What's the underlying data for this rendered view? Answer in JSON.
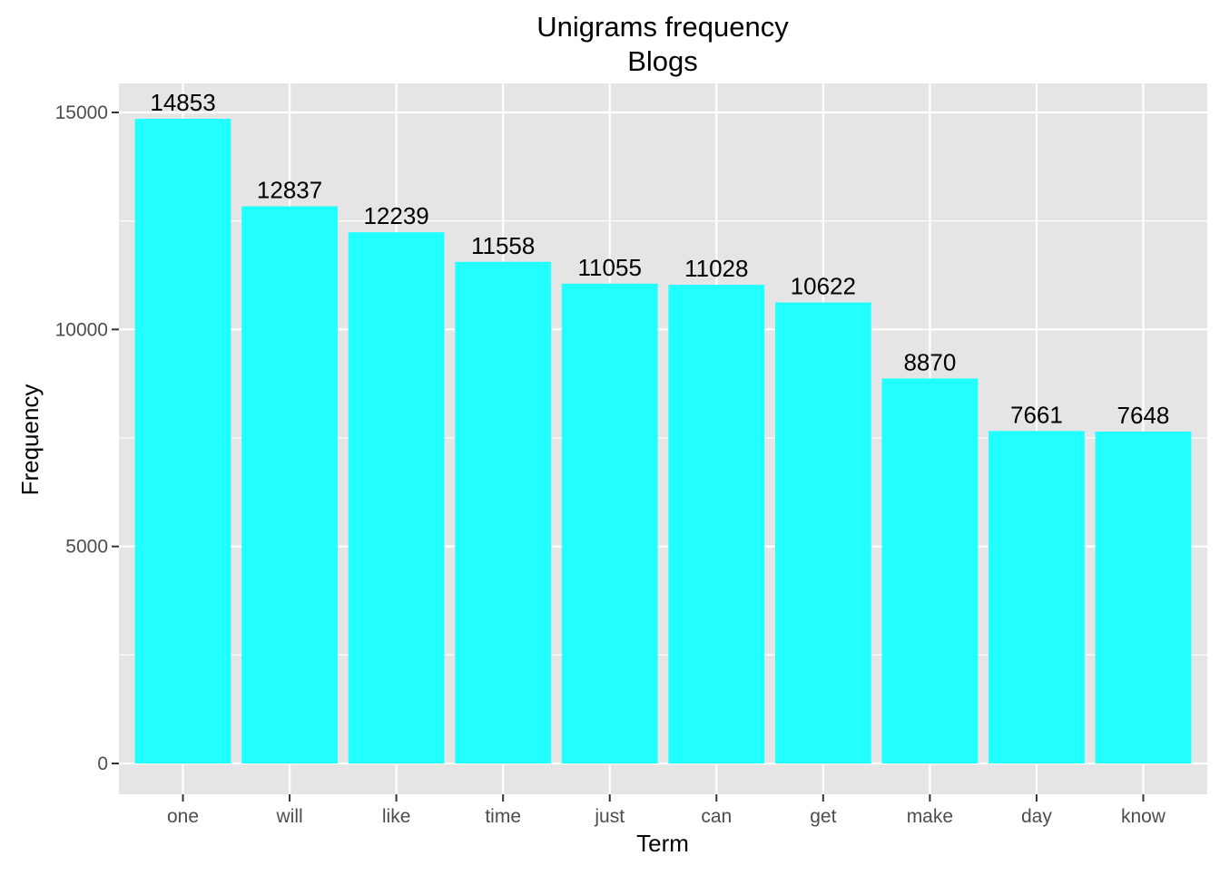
{
  "chart_data": {
    "type": "bar",
    "title": "Unigrams frequency",
    "subtitle": "Blogs",
    "xlabel": "Term",
    "ylabel": "Frequency",
    "categories": [
      "one",
      "will",
      "like",
      "time",
      "just",
      "can",
      "get",
      "make",
      "day",
      "know"
    ],
    "values": [
      14853,
      12837,
      12239,
      11558,
      11055,
      11028,
      10622,
      8870,
      7661,
      7648
    ],
    "data_labels": [
      "14853",
      "12837",
      "12239",
      "11558",
      "11055",
      "11028",
      "10622",
      "8870",
      "7661",
      "7648"
    ],
    "ylim": [
      0,
      15000
    ],
    "yticks": [
      0,
      5000,
      10000,
      15000
    ],
    "ytick_labels": [
      "0",
      "5000",
      "10000",
      "15000"
    ],
    "grid": true,
    "legend": "none",
    "colors": {
      "bar": "#22ffff",
      "panel_background": "#e5e5e5",
      "grid": "#ffffff",
      "tick": "#333333"
    }
  }
}
